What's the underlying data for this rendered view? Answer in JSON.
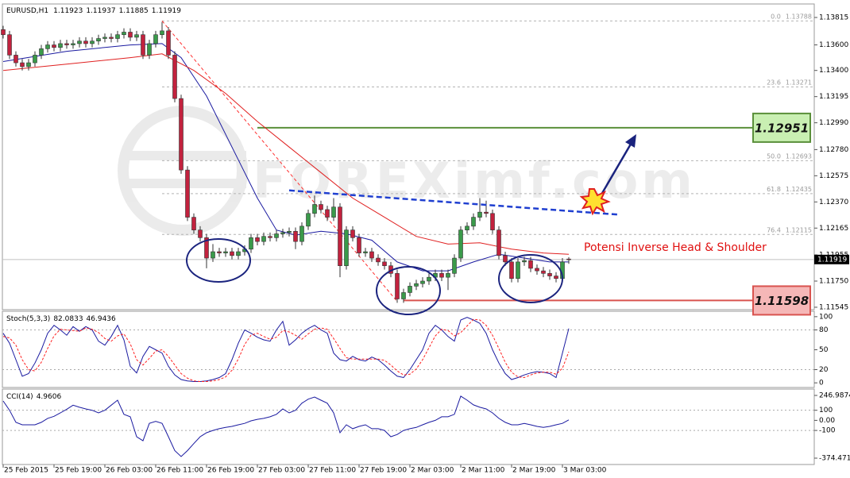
{
  "chart_data": [
    {
      "type": "candlestick",
      "symbol": "EURUSD,H1",
      "header_values": [
        1.11923,
        1.11937,
        1.11885,
        1.11919
      ],
      "watermark": "FOREXimf.com",
      "annotation": "Potensi Inverse Head & Shoulder",
      "up_color": "#3a9a4a",
      "down_color": "#c2223e",
      "categories": [
        "25 Feb 2015",
        null,
        null,
        null,
        null,
        null,
        null,
        null,
        "25 Feb 19:00",
        null,
        null,
        null,
        null,
        null,
        null,
        null,
        "26 Feb 03:00",
        null,
        null,
        null,
        null,
        null,
        null,
        null,
        "26 Feb 11:00",
        null,
        null,
        null,
        null,
        null,
        null,
        null,
        "26 Feb 19:00",
        null,
        null,
        null,
        null,
        null,
        null,
        null,
        "27 Feb 03:00",
        null,
        null,
        null,
        null,
        null,
        null,
        null,
        "27 Feb 11:00",
        null,
        null,
        null,
        null,
        null,
        null,
        null,
        "27 Feb 19:00",
        null,
        null,
        null,
        null,
        null,
        null,
        null,
        "2 Mar 03:00",
        null,
        null,
        null,
        null,
        null,
        null,
        null,
        "2 Mar 11:00",
        null,
        null,
        null,
        null,
        null,
        null,
        null,
        "2 Mar 19:00",
        null,
        null,
        null,
        null,
        null,
        null,
        null,
        "3 Mar 03:00",
        null
      ],
      "open": [
        1.1372,
        1.1368,
        1.1352,
        1.1346,
        1.1343,
        1.1346,
        1.1352,
        1.1357,
        1.136,
        1.1358,
        1.1361,
        1.136,
        1.1361,
        1.1363,
        1.1361,
        1.1363,
        1.1365,
        1.1366,
        1.1365,
        1.1368,
        1.137,
        1.1366,
        1.1368,
        1.1352,
        1.1361,
        1.1368,
        1.1371,
        1.1352,
        1.1318,
        1.1262,
        1.1225,
        1.1215,
        1.1209,
        1.1193,
        1.1198,
        1.1197,
        1.1198,
        1.1195,
        1.1198,
        1.12,
        1.1209,
        1.1206,
        1.121,
        1.1209,
        1.1212,
        1.1213,
        1.1214,
        1.1206,
        1.1218,
        1.1228,
        1.1235,
        1.1231,
        1.1225,
        1.1233,
        1.1187,
        1.1215,
        1.1209,
        1.1197,
        1.1198,
        1.1193,
        1.119,
        1.1187,
        1.1181,
        1.1161,
        1.1166,
        1.1171,
        1.1173,
        1.1175,
        1.1178,
        1.1181,
        1.1178,
        1.1181,
        1.1193,
        1.1215,
        1.1218,
        1.1225,
        1.1229,
        1.1228,
        1.1215,
        1.1195,
        1.119,
        1.1177,
        1.119,
        1.1191,
        1.1185,
        1.1183,
        1.1181,
        1.1179,
        1.1177,
        1.11923
      ],
      "high": [
        1.1375,
        1.1371,
        1.1355,
        1.1349,
        1.1349,
        1.1355,
        1.136,
        1.1363,
        1.1363,
        1.1364,
        1.1364,
        1.1364,
        1.1366,
        1.1366,
        1.1366,
        1.1368,
        1.1369,
        1.1369,
        1.1371,
        1.1373,
        1.1373,
        1.1371,
        1.1371,
        1.1364,
        1.1371,
        1.1378,
        1.1374,
        1.1355,
        1.1321,
        1.1265,
        1.1228,
        1.1218,
        1.1212,
        1.1204,
        1.1201,
        1.1201,
        1.1201,
        1.1201,
        1.1203,
        1.1212,
        1.1212,
        1.1213,
        1.1213,
        1.1215,
        1.1216,
        1.1217,
        1.1217,
        1.1221,
        1.1231,
        1.1242,
        1.1238,
        1.1234,
        1.124,
        1.1236,
        1.1218,
        1.1218,
        1.1212,
        1.1201,
        1.1201,
        1.1196,
        1.1193,
        1.119,
        1.1184,
        1.1169,
        1.1174,
        1.1176,
        1.1178,
        1.1181,
        1.1184,
        1.1184,
        1.1184,
        1.1196,
        1.1218,
        1.1221,
        1.1228,
        1.124,
        1.1238,
        1.1231,
        1.1218,
        1.1198,
        1.1193,
        1.1193,
        1.1194,
        1.1194,
        1.1188,
        1.1186,
        1.1184,
        1.1182,
        1.1193,
        1.11937
      ],
      "low": [
        1.1365,
        1.1349,
        1.1343,
        1.134,
        1.134,
        1.1343,
        1.1349,
        1.1354,
        1.1355,
        1.1355,
        1.1357,
        1.1357,
        1.1358,
        1.1358,
        1.1358,
        1.136,
        1.1362,
        1.1362,
        1.1362,
        1.1365,
        1.1363,
        1.1363,
        1.1349,
        1.1349,
        1.1358,
        1.1365,
        1.1349,
        1.1315,
        1.1259,
        1.1222,
        1.1212,
        1.1206,
        1.1185,
        1.119,
        1.1194,
        1.1194,
        1.1192,
        1.1192,
        1.1195,
        1.1197,
        1.1203,
        1.1203,
        1.1206,
        1.1206,
        1.1209,
        1.121,
        1.12,
        1.1203,
        1.1215,
        1.1225,
        1.1228,
        1.1222,
        1.1222,
        1.1178,
        1.1184,
        1.1206,
        1.1194,
        1.1194,
        1.119,
        1.1187,
        1.1184,
        1.1178,
        1.1158,
        1.1158,
        1.1163,
        1.1168,
        1.117,
        1.1172,
        1.1175,
        1.1175,
        1.1168,
        1.1178,
        1.119,
        1.1212,
        1.1215,
        1.1222,
        1.1225,
        1.1212,
        1.1192,
        1.1187,
        1.1174,
        1.1174,
        1.1187,
        1.1182,
        1.118,
        1.1178,
        1.1176,
        1.1174,
        1.1174,
        1.11885
      ],
      "close": [
        1.1368,
        1.1352,
        1.1346,
        1.1343,
        1.1346,
        1.1352,
        1.1357,
        1.136,
        1.1358,
        1.1361,
        1.136,
        1.1361,
        1.1363,
        1.1361,
        1.1363,
        1.1365,
        1.1366,
        1.1365,
        1.1368,
        1.137,
        1.1366,
        1.1368,
        1.1352,
        1.1361,
        1.1368,
        1.1371,
        1.1352,
        1.1318,
        1.1262,
        1.1225,
        1.1215,
        1.1209,
        1.1193,
        1.1198,
        1.1197,
        1.1198,
        1.1195,
        1.1198,
        1.12,
        1.1209,
        1.1206,
        1.121,
        1.1209,
        1.1212,
        1.1213,
        1.1214,
        1.1206,
        1.1218,
        1.1228,
        1.1235,
        1.1231,
        1.1225,
        1.1233,
        1.1187,
        1.1215,
        1.1209,
        1.1197,
        1.1198,
        1.1193,
        1.119,
        1.1187,
        1.1181,
        1.1161,
        1.1166,
        1.1171,
        1.1173,
        1.1175,
        1.1178,
        1.1181,
        1.1178,
        1.1181,
        1.1193,
        1.1215,
        1.1218,
        1.1225,
        1.1229,
        1.1228,
        1.1215,
        1.1195,
        1.119,
        1.1177,
        1.119,
        1.1191,
        1.1185,
        1.1183,
        1.1181,
        1.1179,
        1.1177,
        1.119,
        1.11919
      ],
      "ylim": [
        1.11526,
        1.13902
      ],
      "yticks": [
        1.13815,
        {
          "value": 1.136,
          "label": "1.13600"
        },
        {
          "value": 1.134,
          "label": "1.13400"
        },
        1.13195,
        {
          "value": 1.1299,
          "label": "1.12990"
        },
        {
          "value": 1.1278,
          "label": "1.12780"
        },
        1.12575,
        {
          "value": 1.1237,
          "label": "1.12370"
        },
        1.12165,
        1.11955,
        {
          "value": 1.1175,
          "label": "1.11750"
        },
        1.11545
      ],
      "current_price": 1.11919,
      "moving_averages": [
        {
          "color": "#1a1aa0",
          "x": [
            0,
            10,
            20,
            25,
            28,
            32,
            36,
            40,
            43,
            46,
            50,
            54,
            58,
            62,
            66,
            70,
            74,
            78,
            82,
            86,
            89
          ],
          "values": [
            1.1347,
            1.1355,
            1.136,
            1.1361,
            1.135,
            1.132,
            1.128,
            1.124,
            1.1215,
            1.1211,
            1.1214,
            1.1212,
            1.1207,
            1.119,
            1.1183,
            1.1183,
            1.119,
            1.1196,
            1.1193,
            1.119,
            1.119
          ]
        },
        {
          "color": "#e02020",
          "x": [
            0,
            10,
            20,
            25,
            30,
            35,
            40,
            45,
            50,
            55,
            60,
            65,
            70,
            75,
            80,
            85,
            89
          ],
          "values": [
            1.134,
            1.1345,
            1.135,
            1.1353,
            1.134,
            1.1322,
            1.13,
            1.128,
            1.126,
            1.124,
            1.1225,
            1.121,
            1.1204,
            1.1205,
            1.12,
            1.1197,
            1.1196
          ]
        }
      ],
      "fib_line": {
        "color": "#ff3030",
        "x": [
          25,
          62
        ],
        "values": [
          1.13788,
          1.1159
        ]
      },
      "fib_levels": [
        {
          "label": "0.0",
          "value": 1.13788
        },
        {
          "label": "23.6",
          "value": 1.13271
        },
        {
          "label": "50.0",
          "value": 1.12693
        },
        {
          "label": "61.8",
          "value": 1.12435
        },
        {
          "label": "76.4",
          "value": 1.12115
        }
      ],
      "levels": [
        {
          "value": 1.12951,
          "from": 40,
          "color": "#5a8f3a",
          "fill": "#c9efb2"
        },
        {
          "value": 1.11598,
          "from": 63,
          "color": "#d9534f",
          "fill": "#f5b7b7"
        }
      ],
      "trendline": {
        "color": "#1f3fd0",
        "x": [
          45,
          97
        ],
        "values": [
          1.1246,
          1.1227
        ]
      }
    },
    {
      "type": "line",
      "title": "Stoch(5,3,3)",
      "header_values": [
        82.0833,
        46.9436
      ],
      "series": [
        {
          "color": "#1a1aa0",
          "values": [
            75,
            60,
            35,
            10,
            14,
            30,
            50,
            75,
            87,
            80,
            72,
            85,
            78,
            85,
            80,
            63,
            57,
            70,
            87,
            65,
            25,
            15,
            40,
            55,
            50,
            45,
            25,
            12,
            5,
            3,
            2,
            2,
            3,
            5,
            8,
            14,
            35,
            60,
            80,
            75,
            69,
            65,
            63,
            80,
            93,
            57,
            65,
            75,
            82,
            87,
            80,
            75,
            45,
            35,
            33,
            40,
            35,
            33,
            39,
            35,
            27,
            18,
            10,
            8,
            20,
            35,
            50,
            75,
            87,
            80,
            70,
            63,
            95,
            99,
            95,
            90,
            75,
            50,
            30,
            14,
            5,
            8,
            12,
            15,
            17,
            16,
            14,
            8,
            45,
            82.0833
          ]
        },
        {
          "color": "#ff2020",
          "dashed": true,
          "values": [
            70,
            68,
            57,
            35,
            20,
            18,
            31,
            52,
            71,
            81,
            80,
            79,
            78,
            83,
            81,
            76,
            67,
            63,
            71,
            74,
            59,
            35,
            27,
            37,
            48,
            50,
            40,
            27,
            14,
            7,
            3,
            2,
            2,
            3,
            5,
            9,
            19,
            36,
            58,
            72,
            75,
            70,
            66,
            69,
            79,
            77,
            72,
            66,
            74,
            81,
            83,
            81,
            67,
            52,
            38,
            36,
            36,
            36,
            36,
            36,
            34,
            27,
            18,
            12,
            13,
            21,
            35,
            53,
            71,
            81,
            79,
            71,
            76,
            86,
            96,
            95,
            87,
            72,
            52,
            31,
            16,
            9,
            8,
            12,
            15,
            16,
            16,
            13,
            22,
            46.9436
          ]
        }
      ],
      "ylim": [
        -7,
        107
      ],
      "yticks": [
        100,
        80,
        50,
        20,
        0
      ],
      "levels": [
        80,
        20
      ]
    },
    {
      "type": "line",
      "title": "CCI(14)",
      "header_values": [
        4.9606
      ],
      "series": [
        {
          "color": "#1a1aa0",
          "values": [
            192,
            100,
            -20,
            -44,
            -44,
            -44,
            -20,
            20,
            40,
            74,
            110,
            150,
            130,
            113,
            100,
            74,
            100,
            150,
            200,
            60,
            35,
            -162,
            -202,
            -30,
            -10,
            -30,
            -162,
            -300,
            -359,
            -300,
            -230,
            -162,
            -123,
            -100,
            -83,
            -70,
            -60,
            -44,
            -30,
            -5,
            10,
            20,
            35,
            60,
            113,
            74,
            100,
            170,
            210,
            231,
            200,
            170,
            74,
            -123,
            -44,
            -83,
            -60,
            -44,
            -83,
            -83,
            -100,
            -162,
            -140,
            -100,
            -83,
            -70,
            -44,
            -20,
            0,
            35,
            35,
            60,
            240,
            200,
            153,
            130,
            113,
            74,
            20,
            -20,
            -44,
            -44,
            -30,
            -44,
            -60,
            -70,
            -60,
            -44,
            -30,
            4.9606
          ]
        }
      ],
      "ylim": [
        -374.4715,
        246.9874
      ],
      "yticks": [
        246.9874,
        100,
        {
          "value": 0,
          "label": "0.00"
        },
        -100,
        -374.4715
      ],
      "levels": [
        100,
        -100
      ]
    }
  ]
}
